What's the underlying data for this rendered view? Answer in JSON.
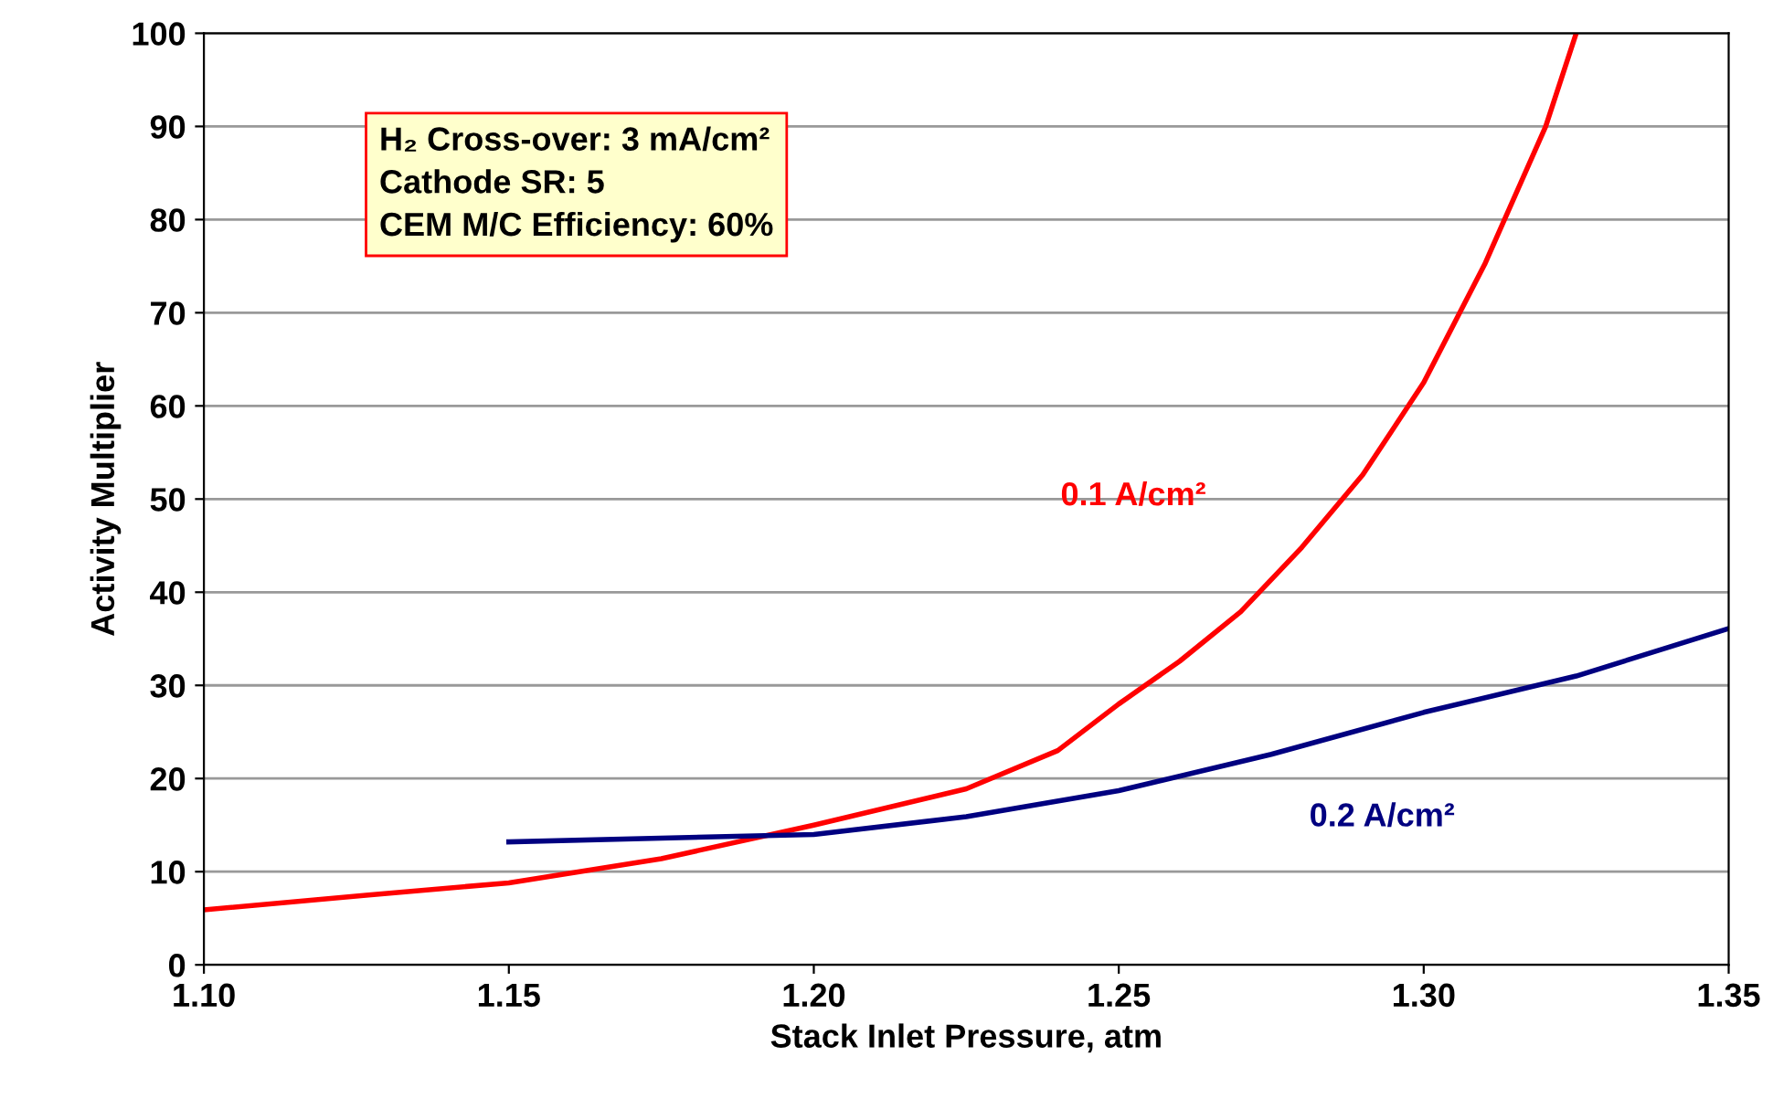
{
  "chart_data": {
    "type": "line",
    "xlabel": "Stack Inlet Pressure, atm",
    "ylabel": "Activity Multiplier",
    "xlim": [
      1.1,
      1.35
    ],
    "xticks": [
      {
        "value": 1.1,
        "label": "1.10"
      },
      {
        "value": 1.15,
        "label": "1.15"
      },
      {
        "value": 1.2,
        "label": "1.20"
      },
      {
        "value": 1.25,
        "label": "1.25"
      },
      {
        "value": 1.3,
        "label": "1.30"
      },
      {
        "value": 1.35,
        "label": "1.35"
      }
    ],
    "ylim": [
      0,
      100
    ],
    "yticks": [
      0,
      10,
      20,
      30,
      40,
      50,
      60,
      70,
      80,
      90,
      100
    ],
    "grid": "y",
    "legend": false,
    "marker": "none",
    "line_style": "solid",
    "annotations": [
      "H₂ Cross-over: 3 mA/cm²\nCathode SR: 5\nCEM M/C Efficiency: 60%"
    ],
    "series": [
      {
        "name": "0.1 A/cm²",
        "color": "#ff0000",
        "x": [
          1.1,
          1.127,
          1.15,
          1.175,
          1.2,
          1.225,
          1.24,
          1.25,
          1.26,
          1.27,
          1.28,
          1.29,
          1.3,
          1.31,
          1.32,
          1.325
        ],
        "values": [
          5.9,
          7.5,
          8.8,
          11.4,
          15,
          18.9,
          23,
          28,
          32.6,
          37.9,
          44.8,
          52.6,
          62.5,
          75.2,
          90,
          100
        ]
      },
      {
        "name": "0.2 A/cm²",
        "color": "#000080",
        "x": [
          1.15,
          1.2,
          1.225,
          1.25,
          1.275,
          1.3,
          1.325,
          1.35
        ],
        "values": [
          13.2,
          14,
          15.9,
          18.7,
          22.6,
          27.1,
          31,
          36.1
        ]
      }
    ]
  }
}
